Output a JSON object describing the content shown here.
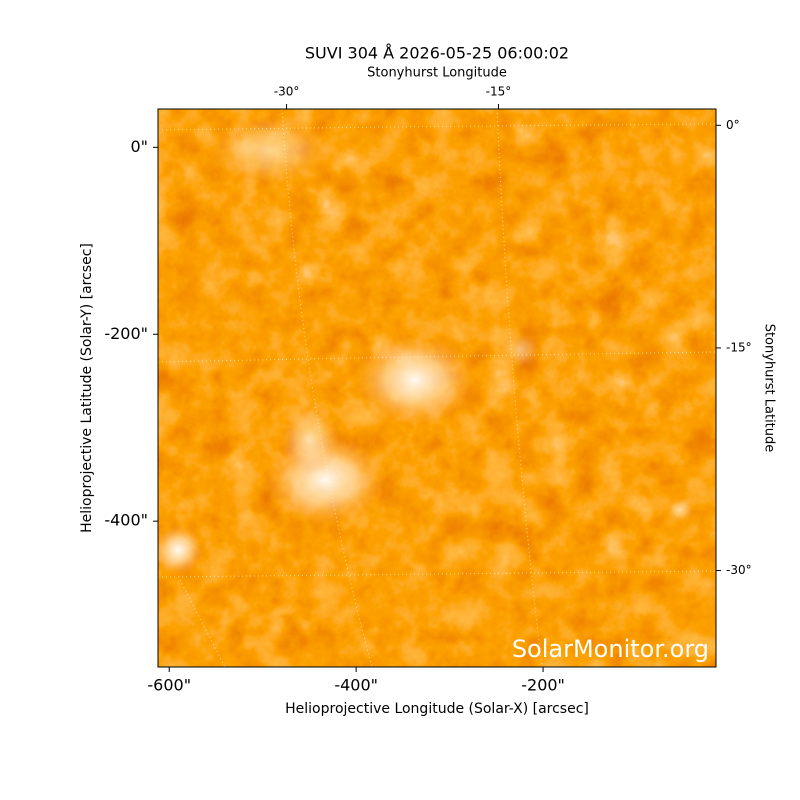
{
  "chart_data": {
    "type": "image",
    "title": "SUVI 304 Å 2026-05-25 06:00:02",
    "xlabel": "Helioprojective Longitude (Solar-X) [arcsec]",
    "ylabel": "Helioprojective Latitude (Solar-Y) [arcsec]",
    "x2label": "Stonyhurst Longitude",
    "y2label": "Stonyhurst Latitude",
    "watermark": "SolarMonitor.org",
    "xlim": [
      -612,
      -15
    ],
    "ylim": [
      -556,
      41
    ],
    "xticks": [
      {
        "value": -600,
        "label": "-600\""
      },
      {
        "value": -400,
        "label": "-400\""
      },
      {
        "value": -200,
        "label": "-200\""
      }
    ],
    "yticks": [
      {
        "value": 0,
        "label": "0\""
      },
      {
        "value": -200,
        "label": "-200\""
      },
      {
        "value": -400,
        "label": "-400\""
      }
    ],
    "x2lim": [
      -39.1,
      0.4
    ],
    "x2ticks": [
      {
        "value": -30,
        "label": "-30°"
      },
      {
        "value": -15,
        "label": "-15°"
      }
    ],
    "y2lim": [
      -36.5,
      1.1
    ],
    "y2ticks": [
      {
        "value": 0,
        "label": "0°"
      },
      {
        "value": -15,
        "label": "-15°"
      },
      {
        "value": -30,
        "label": "-30°"
      }
    ]
  }
}
